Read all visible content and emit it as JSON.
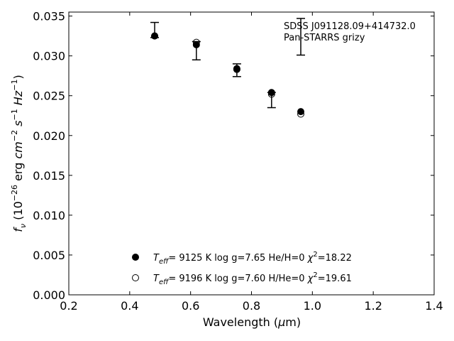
{
  "chart_data": {
    "type": "scatter",
    "annotation": {
      "line1": "SDSS J091128.09+414732.0",
      "line2": "Pan-STARRS grizy"
    },
    "xlabel": {
      "text": "Wavelength (",
      "mu": "μ",
      "unit": "m)"
    },
    "ylabel": {
      "f": "f",
      "nu": "ν",
      "open": " (10",
      "exp1": "−26",
      "mid": " erg ",
      "cm": "cm",
      "exp2": "−2",
      "s": " s",
      "exp3": "−1",
      "hz": " Hz",
      "exp4": "−1",
      "close": ")"
    },
    "xlim": [
      0.2,
      1.4
    ],
    "ylim": [
      0.0,
      0.0355
    ],
    "xticks": [
      "0.2",
      "0.4",
      "0.6",
      "0.8",
      "1.0",
      "1.2",
      "1.4"
    ],
    "yticks": [
      "0.000",
      "0.005",
      "0.010",
      "0.015",
      "0.020",
      "0.025",
      "0.030",
      "0.035"
    ],
    "observed": {
      "x": [
        0.482,
        0.619,
        0.752,
        0.866,
        0.962
      ],
      "y": [
        0.0325,
        0.0315,
        0.0282,
        0.0252,
        0.0324
      ],
      "yerr_low": [
        0.0323,
        0.0295,
        0.0274,
        0.0235,
        0.0301
      ],
      "yerr_high": [
        0.0342,
        0.0318,
        0.029,
        0.0254,
        0.0347
      ]
    },
    "series": [
      {
        "name": "He/H=0",
        "marker": "filled",
        "teff": "9125 K",
        "logg": "log g=7.65",
        "comp": "He/H=0",
        "chi2": "=18.22",
        "x": [
          0.482,
          0.619,
          0.752,
          0.866,
          0.962
        ],
        "y": [
          0.0325,
          0.0314,
          0.0284,
          0.0254,
          0.023
        ]
      },
      {
        "name": "H/He=0",
        "marker": "open",
        "teff": "9196 K",
        "logg": "log g=7.60",
        "comp": "H/He=0",
        "chi2": "=19.61",
        "x": [
          0.482,
          0.619,
          0.752,
          0.866,
          0.962
        ],
        "y": [
          0.0325,
          0.0317,
          0.0283,
          0.0252,
          0.0227
        ]
      }
    ],
    "legend_prefix": {
      "T": "T",
      "sub": "eff",
      "eq": "=  "
    },
    "legend_chi": "χ",
    "legend_chi_exp": "2",
    "legend_placement": "bottom-center",
    "grid": false
  }
}
